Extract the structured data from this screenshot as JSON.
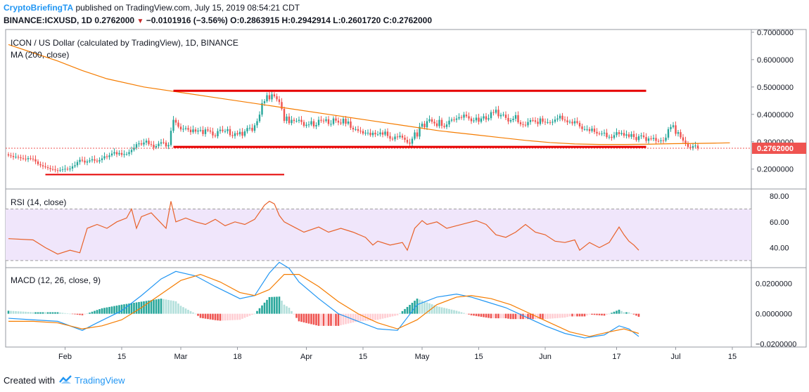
{
  "header": {
    "author": "CryptoBriefingTA",
    "published_text": "published on TradingView.com, July 15, 2019 08:54:21 CDT",
    "symbol_line": "BINANCE:ICXUSD, 1D",
    "last_price": "0.2762000",
    "change_arrow": "▼",
    "change": "−0.0101916 (−3.56%)",
    "ohlc": "O:0.2863915 H:0.2942914 L:0.2601720 C:0.2762000"
  },
  "footer": {
    "created_with": "Created with",
    "brand": "TradingView"
  },
  "colors": {
    "up": "#26a69a",
    "down": "#ef5350",
    "ma": "#f57c00",
    "rsi": "#e8622a",
    "rsi_band": "#f0e6fb",
    "macd": "#2196f3",
    "signal": "#f57c00",
    "trendline": "#e60000",
    "price_tag": "#ef5350"
  },
  "chart_data": {
    "type": "candlestick",
    "title": "ICON / US Dollar (calculated by TradingView), 1D, BINANCE",
    "price_ylim": [
      0.13,
      0.71
    ],
    "price_ticks": [
      "0.7000000",
      "0.6000000",
      "0.5000000",
      "0.4000000",
      "0.3000000",
      "0.2000000"
    ],
    "last_price_label": "0.2762000",
    "x_ticks": [
      "Feb",
      "15",
      "Mar",
      "18",
      "Apr",
      "15",
      "May",
      "15",
      "Jun",
      "17",
      "Jul",
      "15"
    ],
    "ma_label": "MA (200, close)",
    "ma_points": [
      [
        0,
        0.655
      ],
      [
        10,
        0.625
      ],
      [
        20,
        0.595
      ],
      [
        30,
        0.56
      ],
      [
        40,
        0.53
      ],
      [
        55,
        0.5
      ],
      [
        70,
        0.48
      ],
      [
        85,
        0.46
      ],
      [
        100,
        0.44
      ],
      [
        115,
        0.42
      ],
      [
        130,
        0.4
      ],
      [
        145,
        0.38
      ],
      [
        160,
        0.36
      ],
      [
        175,
        0.34
      ],
      [
        190,
        0.325
      ],
      [
        200,
        0.315
      ],
      [
        210,
        0.305
      ],
      [
        220,
        0.297
      ],
      [
        230,
        0.292
      ],
      [
        240,
        0.29
      ],
      [
        250,
        0.29
      ],
      [
        260,
        0.291
      ],
      [
        270,
        0.293
      ],
      [
        280,
        0.294
      ],
      [
        288,
        0.295
      ],
      [
        293,
        0.296
      ]
    ],
    "closes": [
      0.25,
      0.248,
      0.244,
      0.245,
      0.243,
      0.24,
      0.238,
      0.236,
      0.24,
      0.238,
      0.236,
      0.228,
      0.218,
      0.214,
      0.21,
      0.207,
      0.204,
      0.2,
      0.199,
      0.196,
      0.195,
      0.197,
      0.199,
      0.201,
      0.199,
      0.202,
      0.21,
      0.214,
      0.226,
      0.234,
      0.231,
      0.224,
      0.228,
      0.232,
      0.236,
      0.231,
      0.228,
      0.233,
      0.239,
      0.247,
      0.244,
      0.25,
      0.257,
      0.262,
      0.254,
      0.259,
      0.252,
      0.255,
      0.255,
      0.262,
      0.27,
      0.278,
      0.291,
      0.294,
      0.29,
      0.297,
      0.304,
      0.291,
      0.289,
      0.279,
      0.284,
      0.293,
      0.298,
      0.297,
      0.283,
      0.288,
      0.34,
      0.38,
      0.37,
      0.355,
      0.345,
      0.347,
      0.35,
      0.344,
      0.335,
      0.345,
      0.337,
      0.341,
      0.343,
      0.328,
      0.345,
      0.341,
      0.337,
      0.323,
      0.32,
      0.339,
      0.344,
      0.339,
      0.339,
      0.346,
      0.324,
      0.321,
      0.331,
      0.327,
      0.336,
      0.322,
      0.338,
      0.35,
      0.351,
      0.34,
      0.36,
      0.375,
      0.399,
      0.441,
      0.448,
      0.47,
      0.455,
      0.473,
      0.466,
      0.455,
      0.445,
      0.42,
      0.376,
      0.392,
      0.368,
      0.38,
      0.376,
      0.376,
      0.38,
      0.372,
      0.358,
      0.362,
      0.363,
      0.375,
      0.356,
      0.361,
      0.38,
      0.377,
      0.376,
      0.382,
      0.365,
      0.365,
      0.385,
      0.377,
      0.37,
      0.367,
      0.384,
      0.366,
      0.374,
      0.351,
      0.345,
      0.346,
      0.34,
      0.339,
      0.33,
      0.333,
      0.333,
      0.324,
      0.333,
      0.327,
      0.327,
      0.334,
      0.326,
      0.337,
      0.321,
      0.311,
      0.309,
      0.319,
      0.317,
      0.322,
      0.315,
      0.307,
      0.297,
      0.293,
      0.311,
      0.334,
      0.319,
      0.355,
      0.366,
      0.353,
      0.375,
      0.382,
      0.373,
      0.367,
      0.357,
      0.38,
      0.358,
      0.354,
      0.363,
      0.377,
      0.381,
      0.38,
      0.385,
      0.39,
      0.388,
      0.399,
      0.393,
      0.385,
      0.375,
      0.378,
      0.388,
      0.373,
      0.385,
      0.393,
      0.381,
      0.386,
      0.408,
      0.406,
      0.417,
      0.393,
      0.398,
      0.399,
      0.387,
      0.374,
      0.379,
      0.384,
      0.397,
      0.371,
      0.364,
      0.362,
      0.36,
      0.372,
      0.379,
      0.378,
      0.373,
      0.365,
      0.385,
      0.373,
      0.371,
      0.371,
      0.37,
      0.373,
      0.381,
      0.385,
      0.395,
      0.381,
      0.378,
      0.371,
      0.373,
      0.367,
      0.375,
      0.369,
      0.356,
      0.346,
      0.346,
      0.346,
      0.339,
      0.348,
      0.336,
      0.33,
      0.329,
      0.33,
      0.333,
      0.317,
      0.318,
      0.314,
      0.324,
      0.335,
      0.328,
      0.332,
      0.322,
      0.327,
      0.318,
      0.328,
      0.317,
      0.306,
      0.32,
      0.323,
      0.317,
      0.303,
      0.312,
      0.31,
      0.314,
      0.303,
      0.302,
      0.305,
      0.304,
      0.315,
      0.346,
      0.354,
      0.36,
      0.329,
      0.335,
      0.316,
      0.304,
      0.294,
      0.281,
      0.278,
      0.284,
      0.286,
      0.276
    ],
    "trendlines": [
      {
        "from": [
          67,
          0.486
        ],
        "to": [
          259,
          0.486
        ],
        "label": "resistance"
      },
      {
        "from": [
          67,
          0.281
        ],
        "to": [
          259,
          0.281
        ],
        "label": "support"
      },
      {
        "from": [
          15,
          0.18
        ],
        "to": [
          112,
          0.18
        ],
        "label": "old support"
      }
    ],
    "rsi": {
      "label": "RSI (14, close)",
      "ylim": [
        25,
        85
      ],
      "ticks": [
        "80.00",
        "60.00",
        "40.00"
      ],
      "band": [
        30,
        70
      ],
      "points": [
        [
          0,
          47
        ],
        [
          10,
          46
        ],
        [
          15,
          40
        ],
        [
          20,
          35
        ],
        [
          25,
          38
        ],
        [
          29,
          36
        ],
        [
          32,
          55
        ],
        [
          36,
          58
        ],
        [
          40,
          55
        ],
        [
          44,
          60
        ],
        [
          48,
          63
        ],
        [
          50,
          70
        ],
        [
          52,
          55
        ],
        [
          54,
          64
        ],
        [
          58,
          67
        ],
        [
          60,
          63
        ],
        [
          64,
          55
        ],
        [
          66,
          76
        ],
        [
          68,
          60
        ],
        [
          72,
          63
        ],
        [
          76,
          60
        ],
        [
          80,
          58
        ],
        [
          84,
          62
        ],
        [
          88,
          57
        ],
        [
          92,
          60
        ],
        [
          96,
          58
        ],
        [
          100,
          62
        ],
        [
          104,
          73
        ],
        [
          106,
          76
        ],
        [
          108,
          74
        ],
        [
          110,
          65
        ],
        [
          112,
          60
        ],
        [
          116,
          56
        ],
        [
          120,
          52
        ],
        [
          126,
          56
        ],
        [
          130,
          52
        ],
        [
          135,
          55
        ],
        [
          140,
          52
        ],
        [
          145,
          48
        ],
        [
          148,
          42
        ],
        [
          150,
          45
        ],
        [
          155,
          42
        ],
        [
          160,
          44
        ],
        [
          162,
          38
        ],
        [
          165,
          55
        ],
        [
          168,
          61
        ],
        [
          170,
          58
        ],
        [
          174,
          60
        ],
        [
          178,
          55
        ],
        [
          182,
          57
        ],
        [
          186,
          59
        ],
        [
          190,
          61
        ],
        [
          194,
          58
        ],
        [
          198,
          50
        ],
        [
          202,
          48
        ],
        [
          206,
          52
        ],
        [
          210,
          58
        ],
        [
          214,
          52
        ],
        [
          218,
          50
        ],
        [
          222,
          45
        ],
        [
          226,
          44
        ],
        [
          230,
          46
        ],
        [
          232,
          38
        ],
        [
          236,
          44
        ],
        [
          240,
          40
        ],
        [
          244,
          44
        ],
        [
          248,
          56
        ],
        [
          250,
          50
        ],
        [
          252,
          45
        ],
        [
          254,
          42
        ],
        [
          256,
          38
        ]
      ]
    },
    "macd": {
      "label": "MACD (12, 26, close, 9)",
      "ylim": [
        -0.022,
        0.03
      ],
      "ticks": [
        "0.0200000",
        "0.0000000",
        "−0.0200000"
      ],
      "macd_points": [
        [
          0,
          -0.003
        ],
        [
          10,
          -0.004
        ],
        [
          20,
          -0.005
        ],
        [
          30,
          -0.011
        ],
        [
          36,
          -0.006
        ],
        [
          46,
          0.002
        ],
        [
          54,
          0.012
        ],
        [
          62,
          0.023
        ],
        [
          68,
          0.028
        ],
        [
          76,
          0.025
        ],
        [
          84,
          0.018
        ],
        [
          94,
          0.01
        ],
        [
          100,
          0.012
        ],
        [
          106,
          0.027
        ],
        [
          110,
          0.034
        ],
        [
          114,
          0.03
        ],
        [
          118,
          0.021
        ],
        [
          126,
          0.01
        ],
        [
          134,
          0.0
        ],
        [
          142,
          -0.005
        ],
        [
          150,
          -0.01
        ],
        [
          158,
          -0.011
        ],
        [
          166,
          0.006
        ],
        [
          174,
          0.011
        ],
        [
          182,
          0.013
        ],
        [
          188,
          0.011
        ],
        [
          194,
          0.008
        ],
        [
          202,
          0.004
        ],
        [
          210,
          -0.002
        ],
        [
          218,
          -0.008
        ],
        [
          226,
          -0.013
        ],
        [
          234,
          -0.016
        ],
        [
          242,
          -0.014
        ],
        [
          248,
          -0.008
        ],
        [
          252,
          -0.01
        ],
        [
          256,
          -0.015
        ]
      ],
      "signal_points": [
        [
          0,
          -0.005
        ],
        [
          10,
          -0.005
        ],
        [
          20,
          -0.006
        ],
        [
          30,
          -0.01
        ],
        [
          38,
          -0.008
        ],
        [
          46,
          -0.004
        ],
        [
          54,
          0.004
        ],
        [
          62,
          0.013
        ],
        [
          70,
          0.022
        ],
        [
          78,
          0.026
        ],
        [
          86,
          0.021
        ],
        [
          94,
          0.014
        ],
        [
          100,
          0.012
        ],
        [
          106,
          0.016
        ],
        [
          112,
          0.026
        ],
        [
          118,
          0.026
        ],
        [
          126,
          0.018
        ],
        [
          134,
          0.008
        ],
        [
          142,
          0.0
        ],
        [
          150,
          -0.006
        ],
        [
          158,
          -0.01
        ],
        [
          166,
          -0.004
        ],
        [
          174,
          0.006
        ],
        [
          182,
          0.011
        ],
        [
          188,
          0.012
        ],
        [
          196,
          0.01
        ],
        [
          204,
          0.006
        ],
        [
          212,
          0.0
        ],
        [
          220,
          -0.006
        ],
        [
          228,
          -0.012
        ],
        [
          236,
          -0.015
        ],
        [
          244,
          -0.012
        ],
        [
          250,
          -0.01
        ],
        [
          256,
          -0.013
        ]
      ]
    }
  }
}
